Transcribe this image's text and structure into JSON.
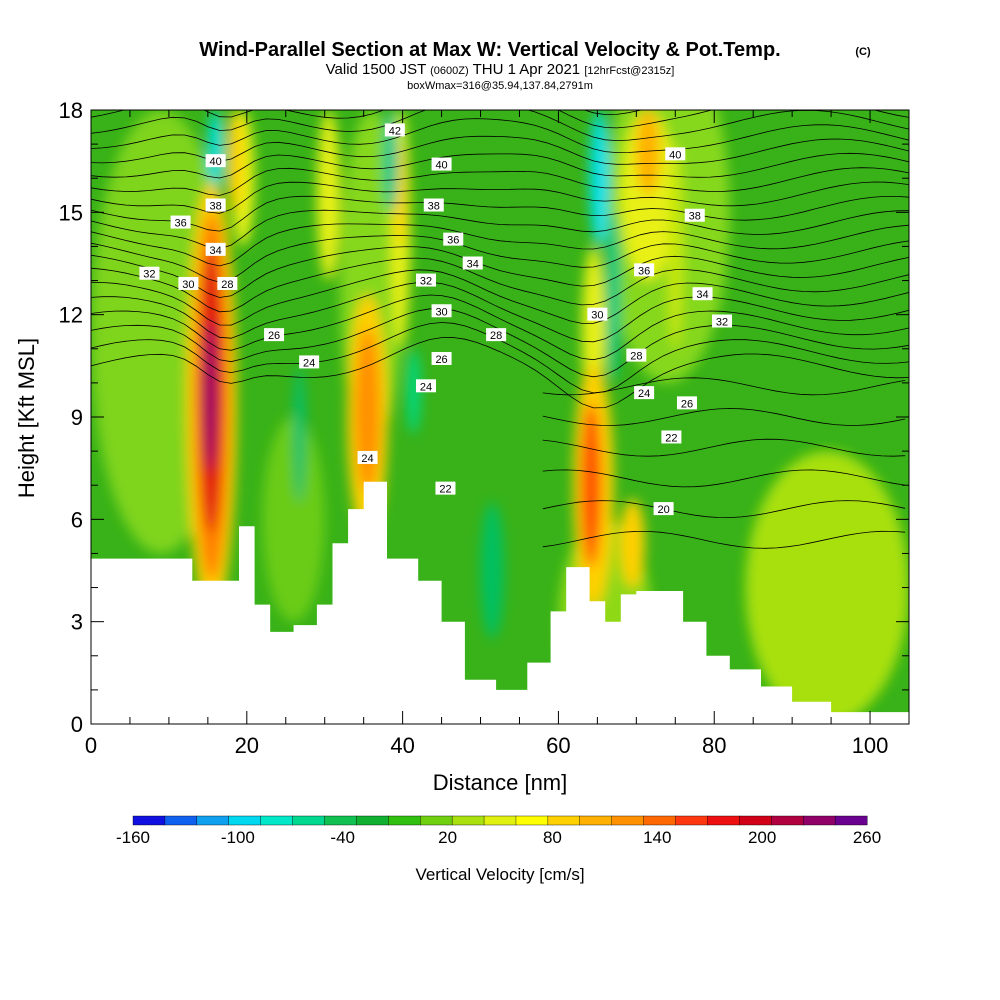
{
  "title": {
    "main": "Wind-Parallel Section at Max W: Vertical Velocity & Pot.Temp.",
    "main_suffix": "(C)",
    "valid_prefix": "Valid 1500 JST",
    "valid_utc": "(0600Z)",
    "valid_day": "THU 1 Apr 2021",
    "valid_fcst": "[12hrFcst@2315z]",
    "box": "boxWmax=316@35.94,137.84,2791m"
  },
  "chart_data": {
    "type": "heatmap",
    "title": "Wind-Parallel Section at Max W: Vertical Velocity & Pot.Temp.",
    "xlabel": "Distance [nm]",
    "ylabel": "Height [Kft MSL]",
    "xlim": [
      0,
      105
    ],
    "ylim": [
      0,
      18
    ],
    "x_ticks": [
      "0",
      "20",
      "40",
      "60",
      "80",
      "100"
    ],
    "y_ticks": [
      "0",
      "3",
      "6",
      "9",
      "12",
      "15",
      "18"
    ],
    "colorbar": {
      "label": "Vertical Velocity [cm/s]",
      "tick_labels": [
        "-160",
        "-100",
        "-40",
        "20",
        "80",
        "140",
        "200",
        "260"
      ],
      "min": -160,
      "max": 260,
      "colors": [
        "#1010e0",
        "#1060f0",
        "#10a0f0",
        "#00d8f0",
        "#00e8c8",
        "#00d890",
        "#10c050",
        "#10b030",
        "#30c010",
        "#70d010",
        "#a8e010",
        "#e0f010",
        "#ffff00",
        "#ffd000",
        "#ffb000",
        "#ff9000",
        "#ff6800",
        "#ff3810",
        "#ee1010",
        "#d00018",
        "#b00040",
        "#900068",
        "#6a0090"
      ]
    },
    "terrain_kft": [
      [
        0,
        4.85
      ],
      [
        13,
        4.85
      ],
      [
        13,
        4.2
      ],
      [
        19,
        4.2
      ],
      [
        19,
        5.8
      ],
      [
        21,
        5.8
      ],
      [
        21,
        3.5
      ],
      [
        23,
        3.5
      ],
      [
        23,
        2.7
      ],
      [
        26,
        2.7
      ],
      [
        26,
        2.9
      ],
      [
        29,
        2.9
      ],
      [
        29,
        3.5
      ],
      [
        31,
        3.5
      ],
      [
        31,
        5.3
      ],
      [
        33,
        5.3
      ],
      [
        33,
        6.3
      ],
      [
        35,
        6.3
      ],
      [
        35,
        7.1
      ],
      [
        38,
        7.1
      ],
      [
        38,
        4.85
      ],
      [
        42,
        4.85
      ],
      [
        42,
        4.2
      ],
      [
        45,
        4.2
      ],
      [
        45,
        3.0
      ],
      [
        48,
        3.0
      ],
      [
        48,
        1.3
      ],
      [
        52,
        1.3
      ],
      [
        52,
        1.0
      ],
      [
        56,
        1.0
      ],
      [
        56,
        1.8
      ],
      [
        59,
        1.8
      ],
      [
        59,
        3.3
      ],
      [
        61,
        3.3
      ],
      [
        61,
        4.6
      ],
      [
        64,
        4.6
      ],
      [
        64,
        3.6
      ],
      [
        66,
        3.6
      ],
      [
        66,
        3.0
      ],
      [
        68,
        3.0
      ],
      [
        68,
        3.8
      ],
      [
        70,
        3.8
      ],
      [
        70,
        3.9
      ],
      [
        76,
        3.9
      ],
      [
        76,
        3.0
      ],
      [
        79,
        3.0
      ],
      [
        79,
        2.0
      ],
      [
        82,
        2.0
      ],
      [
        82,
        1.6
      ],
      [
        86,
        1.6
      ],
      [
        86,
        1.1
      ],
      [
        90,
        1.1
      ],
      [
        90,
        0.65
      ],
      [
        95,
        0.65
      ],
      [
        95,
        0.35
      ],
      [
        105,
        0.35
      ]
    ],
    "theta_contour_labels": [
      {
        "x": 16,
        "y": 16.5,
        "text": "40"
      },
      {
        "x": 16,
        "y": 15.2,
        "text": "38"
      },
      {
        "x": 11.5,
        "y": 14.7,
        "text": "36"
      },
      {
        "x": 16,
        "y": 13.9,
        "text": "34"
      },
      {
        "x": 7.5,
        "y": 13.2,
        "text": "32"
      },
      {
        "x": 12.5,
        "y": 12.9,
        "text": "30"
      },
      {
        "x": 17.5,
        "y": 12.9,
        "text": "28"
      },
      {
        "x": 23.5,
        "y": 11.4,
        "text": "26"
      },
      {
        "x": 28,
        "y": 10.6,
        "text": "24"
      },
      {
        "x": 39,
        "y": 17.4,
        "text": "42"
      },
      {
        "x": 45,
        "y": 16.4,
        "text": "40"
      },
      {
        "x": 44,
        "y": 15.2,
        "text": "38"
      },
      {
        "x": 46.5,
        "y": 14.2,
        "text": "36"
      },
      {
        "x": 49,
        "y": 13.5,
        "text": "34"
      },
      {
        "x": 43,
        "y": 13.0,
        "text": "32"
      },
      {
        "x": 45,
        "y": 12.1,
        "text": "30"
      },
      {
        "x": 52,
        "y": 11.4,
        "text": "28"
      },
      {
        "x": 45,
        "y": 10.7,
        "text": "26"
      },
      {
        "x": 43,
        "y": 9.9,
        "text": "24"
      },
      {
        "x": 35.5,
        "y": 7.8,
        "text": "24"
      },
      {
        "x": 45.5,
        "y": 6.9,
        "text": "22"
      },
      {
        "x": 75,
        "y": 16.7,
        "text": "40"
      },
      {
        "x": 77.5,
        "y": 14.9,
        "text": "38"
      },
      {
        "x": 71,
        "y": 13.3,
        "text": "36"
      },
      {
        "x": 78.5,
        "y": 12.6,
        "text": "34"
      },
      {
        "x": 81,
        "y": 11.8,
        "text": "32"
      },
      {
        "x": 65,
        "y": 12.0,
        "text": "30"
      },
      {
        "x": 70,
        "y": 10.8,
        "text": "28"
      },
      {
        "x": 71,
        "y": 9.7,
        "text": "24"
      },
      {
        "x": 76.5,
        "y": 9.4,
        "text": "26"
      },
      {
        "x": 74.5,
        "y": 8.4,
        "text": "22"
      },
      {
        "x": 73.5,
        "y": 6.3,
        "text": "20"
      }
    ]
  }
}
